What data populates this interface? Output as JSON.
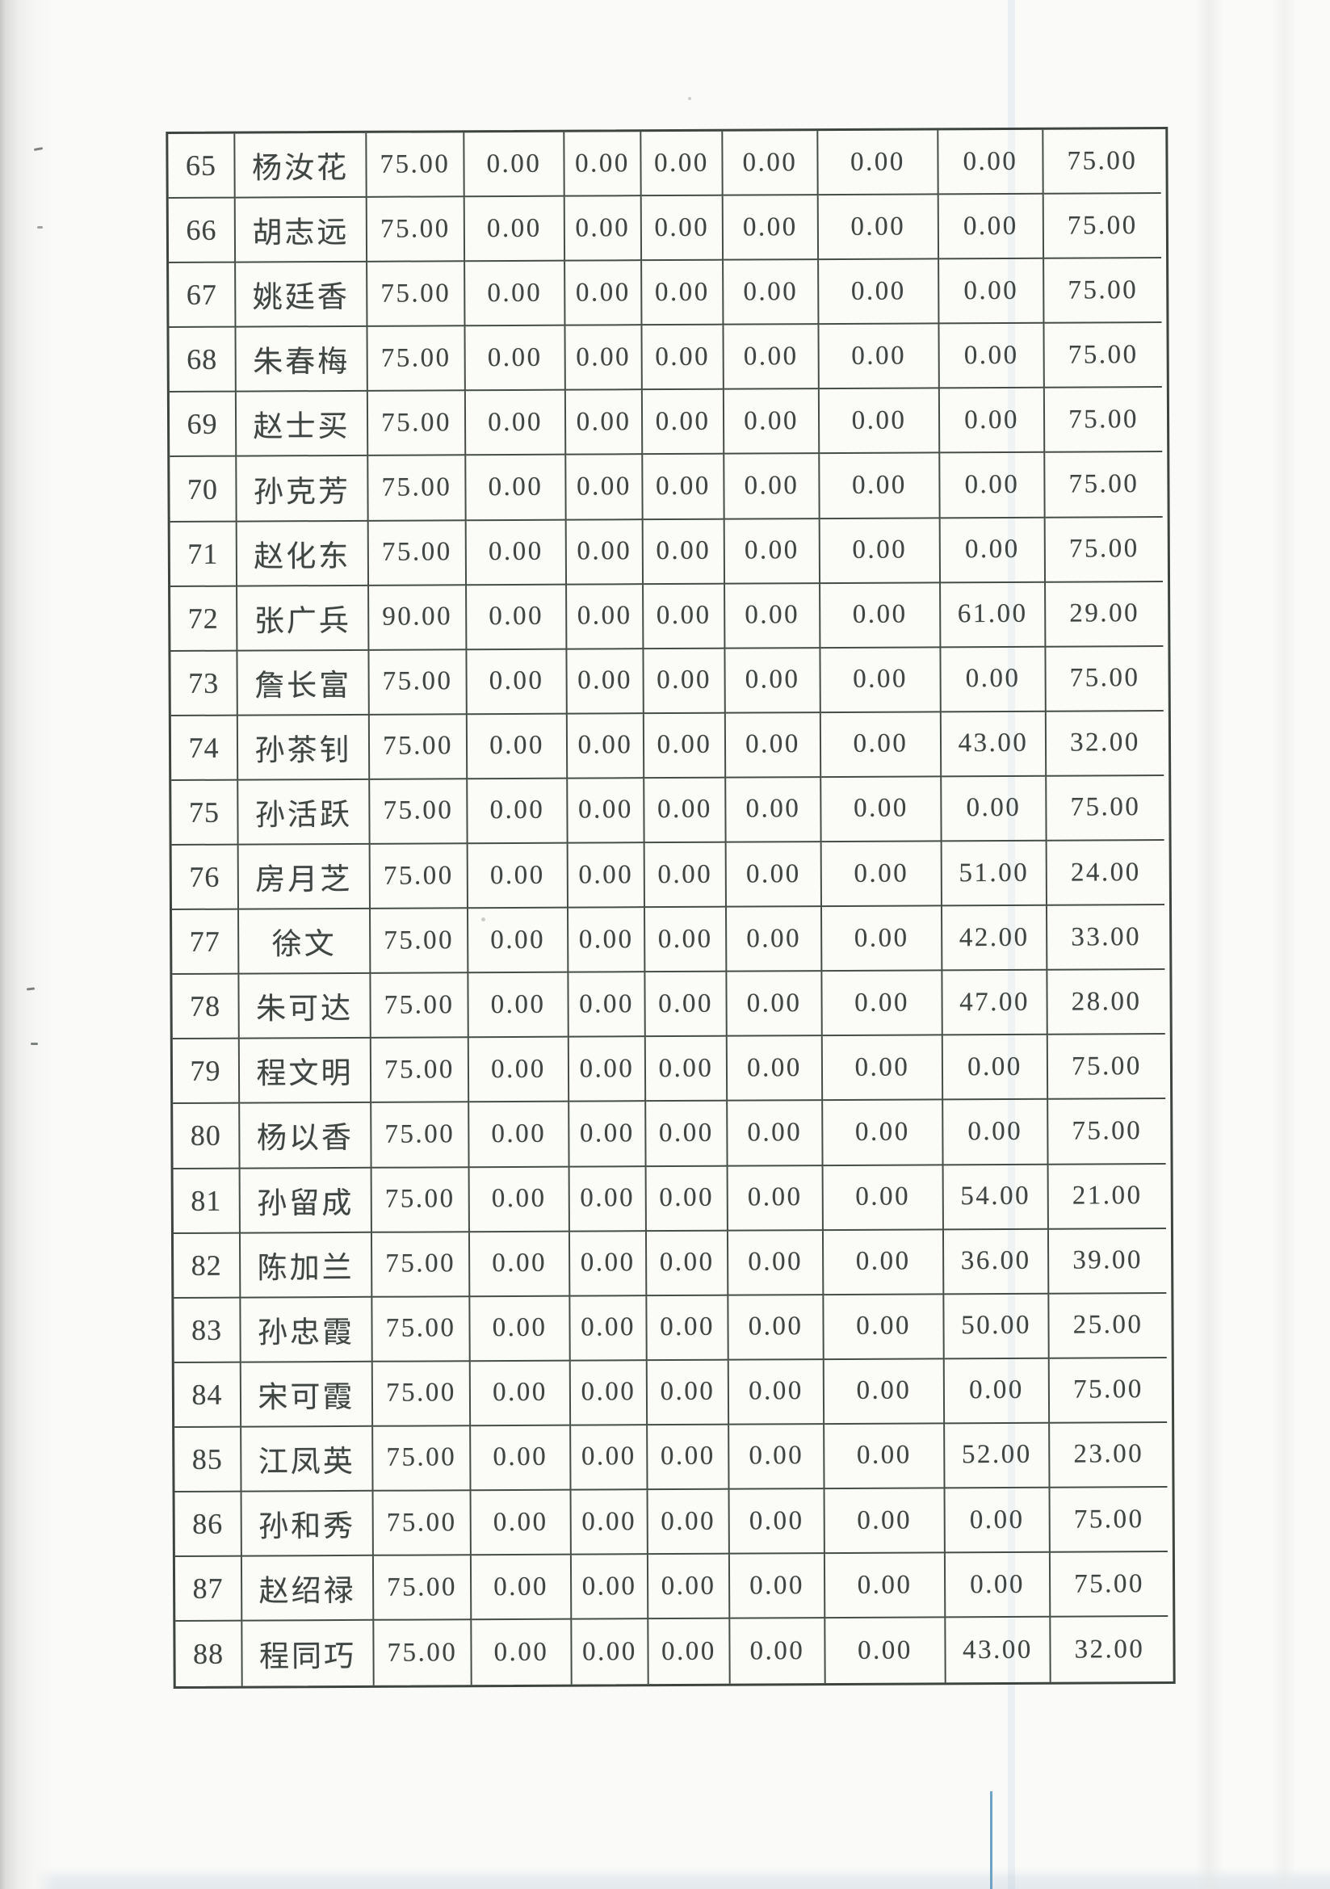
{
  "document": {
    "kind": "scanned-table-page",
    "colors": {
      "paper": "#fafaf8",
      "table_line": "#474e49",
      "ink": "#3f4543",
      "blue_line_accent": "#6ea3c6",
      "bottom_edge_band": "#e9edf0"
    }
  },
  "table": {
    "columns_per_row": 10,
    "rows": [
      {
        "no": "65",
        "name": "杨汝花",
        "values": [
          "75.00",
          "0.00",
          "0.00",
          "0.00",
          "0.00",
          "0.00",
          "0.00",
          "75.00"
        ]
      },
      {
        "no": "66",
        "name": "胡志远",
        "values": [
          "75.00",
          "0.00",
          "0.00",
          "0.00",
          "0.00",
          "0.00",
          "0.00",
          "75.00"
        ]
      },
      {
        "no": "67",
        "name": "姚廷香",
        "values": [
          "75.00",
          "0.00",
          "0.00",
          "0.00",
          "0.00",
          "0.00",
          "0.00",
          "75.00"
        ]
      },
      {
        "no": "68",
        "name": "朱春梅",
        "values": [
          "75.00",
          "0.00",
          "0.00",
          "0.00",
          "0.00",
          "0.00",
          "0.00",
          "75.00"
        ]
      },
      {
        "no": "69",
        "name": "赵士买",
        "values": [
          "75.00",
          "0.00",
          "0.00",
          "0.00",
          "0.00",
          "0.00",
          "0.00",
          "75.00"
        ]
      },
      {
        "no": "70",
        "name": "孙克芳",
        "values": [
          "75.00",
          "0.00",
          "0.00",
          "0.00",
          "0.00",
          "0.00",
          "0.00",
          "75.00"
        ]
      },
      {
        "no": "71",
        "name": "赵化东",
        "values": [
          "75.00",
          "0.00",
          "0.00",
          "0.00",
          "0.00",
          "0.00",
          "0.00",
          "75.00"
        ]
      },
      {
        "no": "72",
        "name": "张广兵",
        "values": [
          "90.00",
          "0.00",
          "0.00",
          "0.00",
          "0.00",
          "0.00",
          "61.00",
          "29.00"
        ]
      },
      {
        "no": "73",
        "name": "詹长富",
        "values": [
          "75.00",
          "0.00",
          "0.00",
          "0.00",
          "0.00",
          "0.00",
          "0.00",
          "75.00"
        ]
      },
      {
        "no": "74",
        "name": "孙茶钊",
        "values": [
          "75.00",
          "0.00",
          "0.00",
          "0.00",
          "0.00",
          "0.00",
          "43.00",
          "32.00"
        ]
      },
      {
        "no": "75",
        "name": "孙活跃",
        "values": [
          "75.00",
          "0.00",
          "0.00",
          "0.00",
          "0.00",
          "0.00",
          "0.00",
          "75.00"
        ]
      },
      {
        "no": "76",
        "name": "房月芝",
        "values": [
          "75.00",
          "0.00",
          "0.00",
          "0.00",
          "0.00",
          "0.00",
          "51.00",
          "24.00"
        ]
      },
      {
        "no": "77",
        "name": "徐文",
        "values": [
          "75.00",
          "0.00",
          "0.00",
          "0.00",
          "0.00",
          "0.00",
          "42.00",
          "33.00"
        ]
      },
      {
        "no": "78",
        "name": "朱可达",
        "values": [
          "75.00",
          "0.00",
          "0.00",
          "0.00",
          "0.00",
          "0.00",
          "47.00",
          "28.00"
        ]
      },
      {
        "no": "79",
        "name": "程文明",
        "values": [
          "75.00",
          "0.00",
          "0.00",
          "0.00",
          "0.00",
          "0.00",
          "0.00",
          "75.00"
        ]
      },
      {
        "no": "80",
        "name": "杨以香",
        "values": [
          "75.00",
          "0.00",
          "0.00",
          "0.00",
          "0.00",
          "0.00",
          "0.00",
          "75.00"
        ]
      },
      {
        "no": "81",
        "name": "孙留成",
        "values": [
          "75.00",
          "0.00",
          "0.00",
          "0.00",
          "0.00",
          "0.00",
          "54.00",
          "21.00"
        ]
      },
      {
        "no": "82",
        "name": "陈加兰",
        "values": [
          "75.00",
          "0.00",
          "0.00",
          "0.00",
          "0.00",
          "0.00",
          "36.00",
          "39.00"
        ]
      },
      {
        "no": "83",
        "name": "孙忠霞",
        "values": [
          "75.00",
          "0.00",
          "0.00",
          "0.00",
          "0.00",
          "0.00",
          "50.00",
          "25.00"
        ]
      },
      {
        "no": "84",
        "name": "宋可霞",
        "values": [
          "75.00",
          "0.00",
          "0.00",
          "0.00",
          "0.00",
          "0.00",
          "0.00",
          "75.00"
        ]
      },
      {
        "no": "85",
        "name": "江凤英",
        "values": [
          "75.00",
          "0.00",
          "0.00",
          "0.00",
          "0.00",
          "0.00",
          "52.00",
          "23.00"
        ]
      },
      {
        "no": "86",
        "name": "孙和秀",
        "values": [
          "75.00",
          "0.00",
          "0.00",
          "0.00",
          "0.00",
          "0.00",
          "0.00",
          "75.00"
        ]
      },
      {
        "no": "87",
        "name": "赵绍禄",
        "values": [
          "75.00",
          "0.00",
          "0.00",
          "0.00",
          "0.00",
          "0.00",
          "0.00",
          "75.00"
        ]
      },
      {
        "no": "88",
        "name": "程同巧",
        "values": [
          "75.00",
          "0.00",
          "0.00",
          "0.00",
          "0.00",
          "0.00",
          "43.00",
          "32.00"
        ]
      }
    ]
  }
}
